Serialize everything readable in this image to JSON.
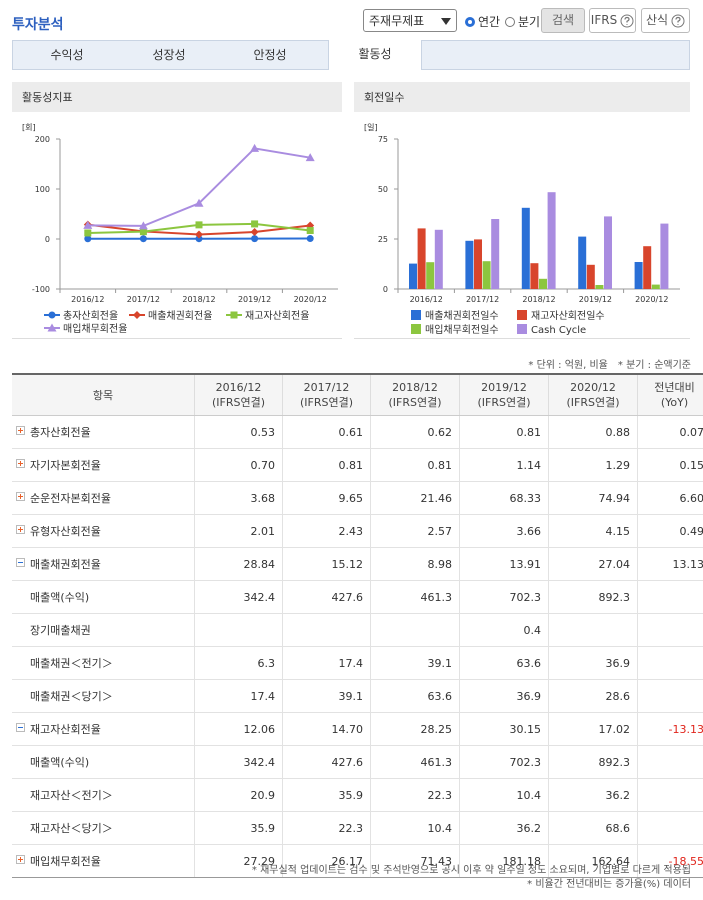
{
  "header": {
    "title": "투자분석",
    "select": "주재무제표",
    "radio": [
      "연간",
      "분기"
    ],
    "buttons": [
      "검색",
      "IFRS",
      "산식"
    ]
  },
  "tabs": {
    "items": [
      "수익성",
      "성장성",
      "안정성",
      "활동성"
    ],
    "active": 3
  },
  "chart_data": [
    {
      "type": "line",
      "title": "활동성지표",
      "unit": "[회]",
      "categories": [
        "2016/12",
        "2017/12",
        "2018/12",
        "2019/12",
        "2020/12"
      ],
      "ylim": [
        -100,
        200
      ],
      "yticks": [
        -100,
        0,
        100,
        200
      ],
      "grid": false,
      "series": [
        {
          "name": "총자산회전율",
          "color": "#2a6fd6",
          "marker": "circle",
          "values": [
            0.53,
            0.61,
            0.62,
            0.81,
            0.88
          ]
        },
        {
          "name": "매출채권회전율",
          "color": "#d8452c",
          "marker": "diamond",
          "values": [
            28.84,
            15.12,
            8.98,
            13.91,
            27.04
          ]
        },
        {
          "name": "재고자산회전율",
          "color": "#8cc63f",
          "marker": "square",
          "values": [
            12.06,
            14.7,
            28.25,
            30.15,
            17.02
          ]
        },
        {
          "name": "매입채무회전율",
          "color": "#a98ce0",
          "marker": "triangle",
          "values": [
            27.29,
            26.17,
            71.43,
            181.18,
            162.64
          ]
        }
      ]
    },
    {
      "type": "bar",
      "title": "회전일수",
      "unit": "[일]",
      "categories": [
        "2016/12",
        "2017/12",
        "2018/12",
        "2019/12",
        "2020/12"
      ],
      "ylim": [
        0,
        75
      ],
      "yticks": [
        0,
        25,
        50,
        75
      ],
      "grid": false,
      "series": [
        {
          "name": "매출채권회전일수",
          "color": "#2a6fd6",
          "values": [
            12.7,
            24.1,
            40.6,
            26.2,
            13.5
          ]
        },
        {
          "name": "재고자산회전일수",
          "color": "#d8452c",
          "values": [
            30.3,
            24.8,
            12.9,
            12.1,
            21.4
          ]
        },
        {
          "name": "매입채무회전일수",
          "color": "#8cc63f",
          "values": [
            13.4,
            13.9,
            5.1,
            2.0,
            2.2
          ]
        },
        {
          "name": "Cash Cycle",
          "color": "#a98ce0",
          "values": [
            29.6,
            35.0,
            48.4,
            36.3,
            32.7
          ]
        }
      ]
    }
  ],
  "notes": [
    "* 단위 : 억원, 비율",
    "* 분기 : 순액기준"
  ],
  "table": {
    "columns": [
      {
        "label": "항목"
      },
      {
        "label": "2016/12",
        "sub": "(IFRS연결)"
      },
      {
        "label": "2017/12",
        "sub": "(IFRS연결)"
      },
      {
        "label": "2018/12",
        "sub": "(IFRS연결)"
      },
      {
        "label": "2019/12",
        "sub": "(IFRS연결)"
      },
      {
        "label": "2020/12",
        "sub": "(IFRS연결)"
      },
      {
        "label": "전년대비",
        "sub": "(YoY)"
      }
    ],
    "rows": [
      {
        "label": "총자산회전율",
        "toggle": "plus",
        "values": [
          "0.53",
          "0.61",
          "0.62",
          "0.81",
          "0.88",
          "0.07"
        ]
      },
      {
        "label": "자기자본회전율",
        "toggle": "plus",
        "values": [
          "0.70",
          "0.81",
          "0.81",
          "1.14",
          "1.29",
          "0.15"
        ]
      },
      {
        "label": "순운전자본회전율",
        "toggle": "plus",
        "values": [
          "3.68",
          "9.65",
          "21.46",
          "68.33",
          "74.94",
          "6.60"
        ]
      },
      {
        "label": "유형자산회전율",
        "toggle": "plus",
        "values": [
          "2.01",
          "2.43",
          "2.57",
          "3.66",
          "4.15",
          "0.49"
        ]
      },
      {
        "label": "매출채권회전율",
        "toggle": "minus",
        "values": [
          "28.84",
          "15.12",
          "8.98",
          "13.91",
          "27.04",
          "13.13"
        ]
      },
      {
        "label": "매출액(수익)",
        "values": [
          "342.4",
          "427.6",
          "461.3",
          "702.3",
          "892.3",
          null
        ]
      },
      {
        "label": "장기매출채권",
        "values": [
          null,
          null,
          null,
          "0.4",
          null,
          null
        ]
      },
      {
        "label": "매출채권＜전기＞",
        "values": [
          "6.3",
          "17.4",
          "39.1",
          "63.6",
          "36.9",
          null
        ]
      },
      {
        "label": "매출채권＜당기＞",
        "values": [
          "17.4",
          "39.1",
          "63.6",
          "36.9",
          "28.6",
          null
        ]
      },
      {
        "label": "재고자산회전율",
        "toggle": "minus",
        "values": [
          "12.06",
          "14.70",
          "28.25",
          "30.15",
          "17.02",
          "-13.13"
        ]
      },
      {
        "label": "매출액(수익)",
        "values": [
          "342.4",
          "427.6",
          "461.3",
          "702.3",
          "892.3",
          null
        ]
      },
      {
        "label": "재고자산＜전기＞",
        "values": [
          "20.9",
          "35.9",
          "22.3",
          "10.4",
          "36.2",
          null
        ]
      },
      {
        "label": "재고자산＜당기＞",
        "values": [
          "35.9",
          "22.3",
          "10.4",
          "36.2",
          "68.6",
          null
        ]
      },
      {
        "label": "매입채무회전율",
        "toggle": "plus",
        "values": [
          "27.29",
          "26.17",
          "71.43",
          "181.18",
          "162.64",
          "-18.55"
        ]
      }
    ]
  },
  "footnotes": [
    "* 재무실적 업데이트는 검수 및 주석반영으로 공시 이후 약 일주일 정도 소요되며, 기업별로 다르게 적용됩",
    "* 비율간 전년대비는 증가율(%) 데이터"
  ]
}
